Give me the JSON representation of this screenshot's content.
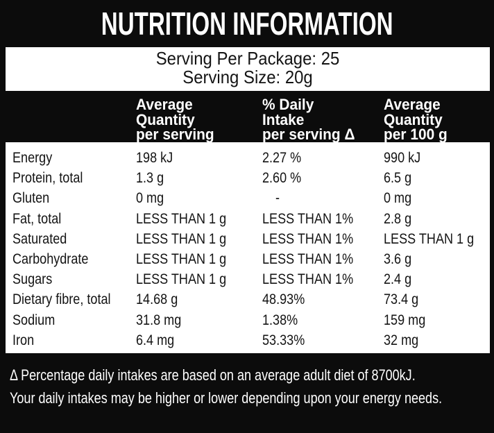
{
  "title": "NUTRITION INFORMATION",
  "serving": {
    "per_package": "Serving Per Package: 25",
    "size": "Serving Size: 20g"
  },
  "table": {
    "headers": {
      "per_serving": [
        "Average",
        "Quantity",
        "per serving"
      ],
      "daily_intake": [
        "% Daily",
        "Intake",
        "per serving Δ"
      ],
      "per_100g": [
        "Average",
        "Quantity",
        "per 100 g"
      ]
    },
    "rows": [
      {
        "nutrient": "Energy",
        "per_serving": "198 kJ",
        "daily_intake": "2.27 %",
        "per_100g": "990 kJ"
      },
      {
        "nutrient": "Protein, total",
        "per_serving": "1.3 g",
        "daily_intake": "2.60 %",
        "per_100g": "6.5 g"
      },
      {
        "nutrient": "Gluten",
        "per_serving": "0 mg",
        "daily_intake": "-",
        "per_100g": "0 mg"
      },
      {
        "nutrient": "Fat, total",
        "per_serving": "LESS THAN 1 g",
        "daily_intake": "LESS THAN 1%",
        "per_100g": "2.8 g"
      },
      {
        "nutrient": "Saturated",
        "per_serving": "LESS THAN 1 g",
        "daily_intake": "LESS THAN 1%",
        "per_100g": "LESS THAN 1 g"
      },
      {
        "nutrient": "Carbohydrate",
        "per_serving": "LESS THAN 1 g",
        "daily_intake": "LESS THAN 1%",
        "per_100g": "3.6 g"
      },
      {
        "nutrient": "Sugars",
        "per_serving": "LESS THAN 1 g",
        "daily_intake": "LESS THAN 1%",
        "per_100g": "2.4 g"
      },
      {
        "nutrient": "Dietary fibre, total",
        "per_serving": "14.68 g",
        "daily_intake": "48.93%",
        "per_100g": "73.4 g"
      },
      {
        "nutrient": "Sodium",
        "per_serving": "31.8 mg",
        "daily_intake": "1.38%",
        "per_100g": "159 mg"
      },
      {
        "nutrient": "Iron",
        "per_serving": "6.4 mg",
        "daily_intake": "53.33%",
        "per_100g": "32 mg"
      }
    ]
  },
  "footnote": {
    "line1": "Δ Percentage daily intakes are based on an average adult diet of 8700kJ.",
    "line2": "Your daily intakes may be higher or lower depending upon your energy needs."
  },
  "colors": {
    "background": "#0c0c0c",
    "panel": "#ffffff",
    "light_text": "#ffffff",
    "dark_text": "#141414"
  }
}
